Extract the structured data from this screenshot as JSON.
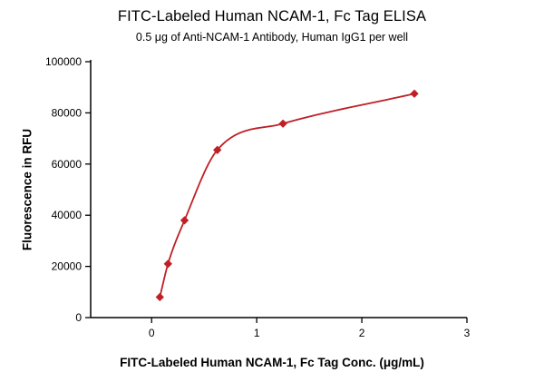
{
  "chart_data": {
    "type": "line",
    "title": "FITC-Labeled Human NCAM-1, Fc Tag ELISA",
    "subtitle": "0.5 μg of Anti-NCAM-1 Antibody, Human IgG1 per well",
    "xlabel": "FITC-Labeled Human NCAM-1, Fc Tag Conc. (μg/mL)",
    "ylabel": "Fluorescence in RFU",
    "x": [
      0.078,
      0.156,
      0.313,
      0.625,
      1.25,
      2.5
    ],
    "y": [
      8000,
      21000,
      38000,
      65500,
      75800,
      87500
    ],
    "xlim": [
      -0.58,
      3
    ],
    "ylim": [
      0,
      100000
    ],
    "xticks": [
      0,
      1,
      2,
      3
    ],
    "yticks": [
      0,
      20000,
      40000,
      60000,
      80000,
      100000
    ],
    "marker": "diamond",
    "grid": false,
    "legend": "none",
    "line_color": "#be2026",
    "axis_color": "#000000"
  }
}
